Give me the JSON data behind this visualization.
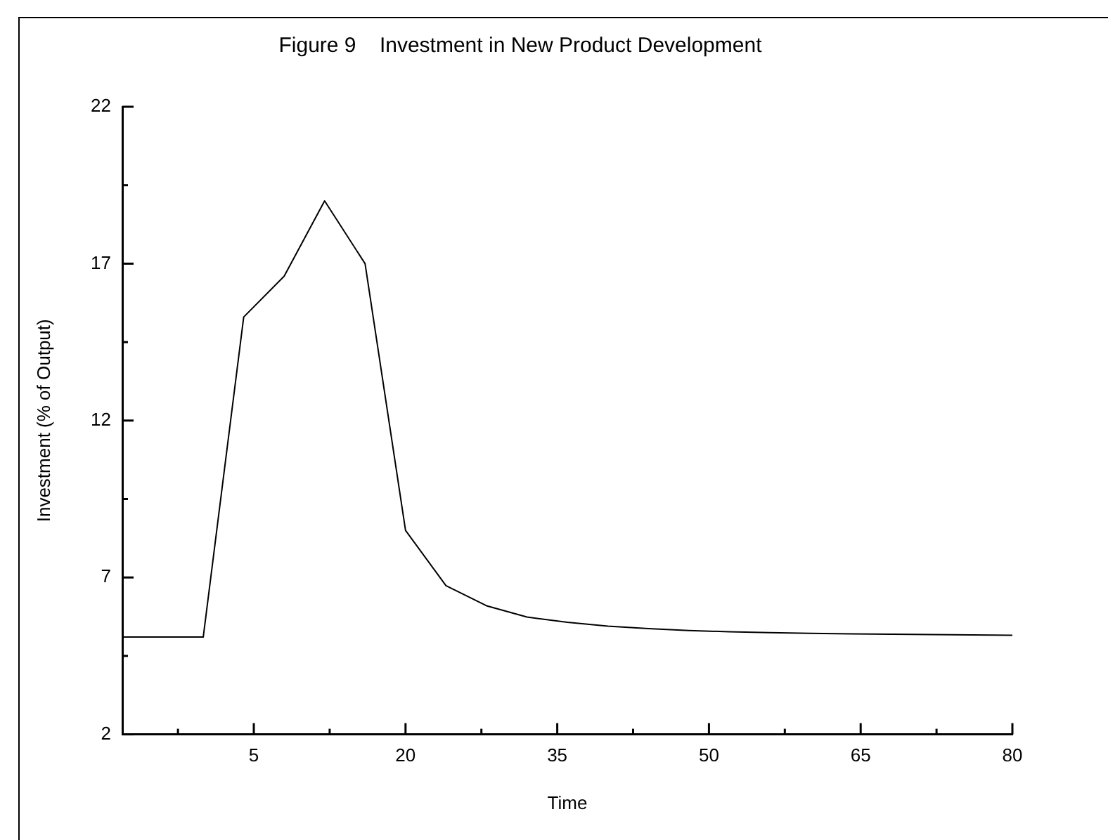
{
  "chart_data": {
    "type": "line",
    "title": "Figure 9    Investment in New Product Development",
    "xlabel": "Time",
    "ylabel": "Investment (% of Output)",
    "x": [
      -8,
      0,
      4,
      8,
      12,
      16,
      20,
      24,
      28,
      32,
      36,
      40,
      44,
      48,
      52,
      56,
      60,
      64,
      68,
      72,
      76,
      80
    ],
    "series": [
      {
        "color": "#000000",
        "values": [
          5.1,
          5.1,
          15.3,
          16.6,
          19.0,
          17.0,
          8.5,
          6.74,
          6.1,
          5.74,
          5.57,
          5.45,
          5.37,
          5.31,
          5.27,
          5.24,
          5.22,
          5.2,
          5.19,
          5.18,
          5.17,
          5.16
        ]
      }
    ],
    "xlim": [
      -8,
      80
    ],
    "xticks": [
      {
        "value": -2.5,
        "label": null
      },
      5,
      {
        "value": 12.5,
        "label": null
      },
      20,
      {
        "value": 27.5,
        "label": null
      },
      35,
      {
        "value": 42.5,
        "label": null
      },
      50,
      {
        "value": 57.5,
        "label": null
      },
      65,
      {
        "value": 72.5,
        "label": null
      },
      80
    ],
    "ylim": [
      2,
      22
    ],
    "yticks": [
      2,
      {
        "value": 4.5,
        "label": null
      },
      7,
      {
        "value": 9.5,
        "label": null
      },
      12,
      {
        "value": 14.5,
        "label": null
      },
      17,
      {
        "value": 19.5,
        "label": null
      },
      22
    ],
    "grid": false,
    "legend": false,
    "marker": "none",
    "line_style": "solid"
  }
}
